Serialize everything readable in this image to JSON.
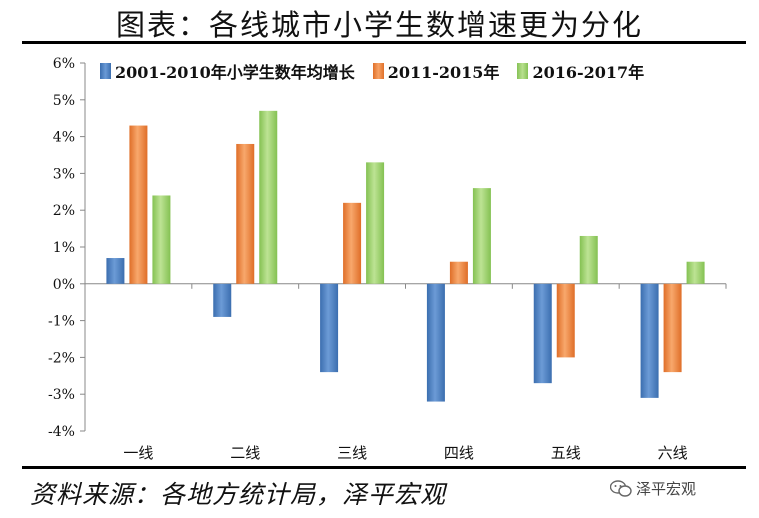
{
  "title": "图表：各线城市小学生数增速更为分化",
  "source": "资料来源：各地方统计局，泽平宏观",
  "watermark": "泽平宏观",
  "chart_data": {
    "type": "bar",
    "categories": [
      "一线",
      "二线",
      "三线",
      "四线",
      "五线",
      "六线"
    ],
    "series": [
      {
        "name": "2001-2010年小学生数年均增长",
        "color": "#4a7fc1",
        "values": [
          0.7,
          -0.9,
          -2.4,
          -3.2,
          -2.7,
          -3.1
        ]
      },
      {
        "name": "2011-2015年",
        "color": "#f0843c",
        "values": [
          4.3,
          3.8,
          2.2,
          0.6,
          -2.0,
          -2.4
        ]
      },
      {
        "name": "2016-2017年",
        "color": "#9dd070",
        "values": [
          2.4,
          4.7,
          3.3,
          2.6,
          1.3,
          0.6
        ]
      }
    ],
    "ylim": [
      -4,
      6
    ],
    "yticks": [
      "-4%",
      "-3%",
      "-2%",
      "-1%",
      "0%",
      "1%",
      "2%",
      "3%",
      "4%",
      "5%",
      "6%"
    ],
    "legend_position": "top",
    "grid": false
  }
}
